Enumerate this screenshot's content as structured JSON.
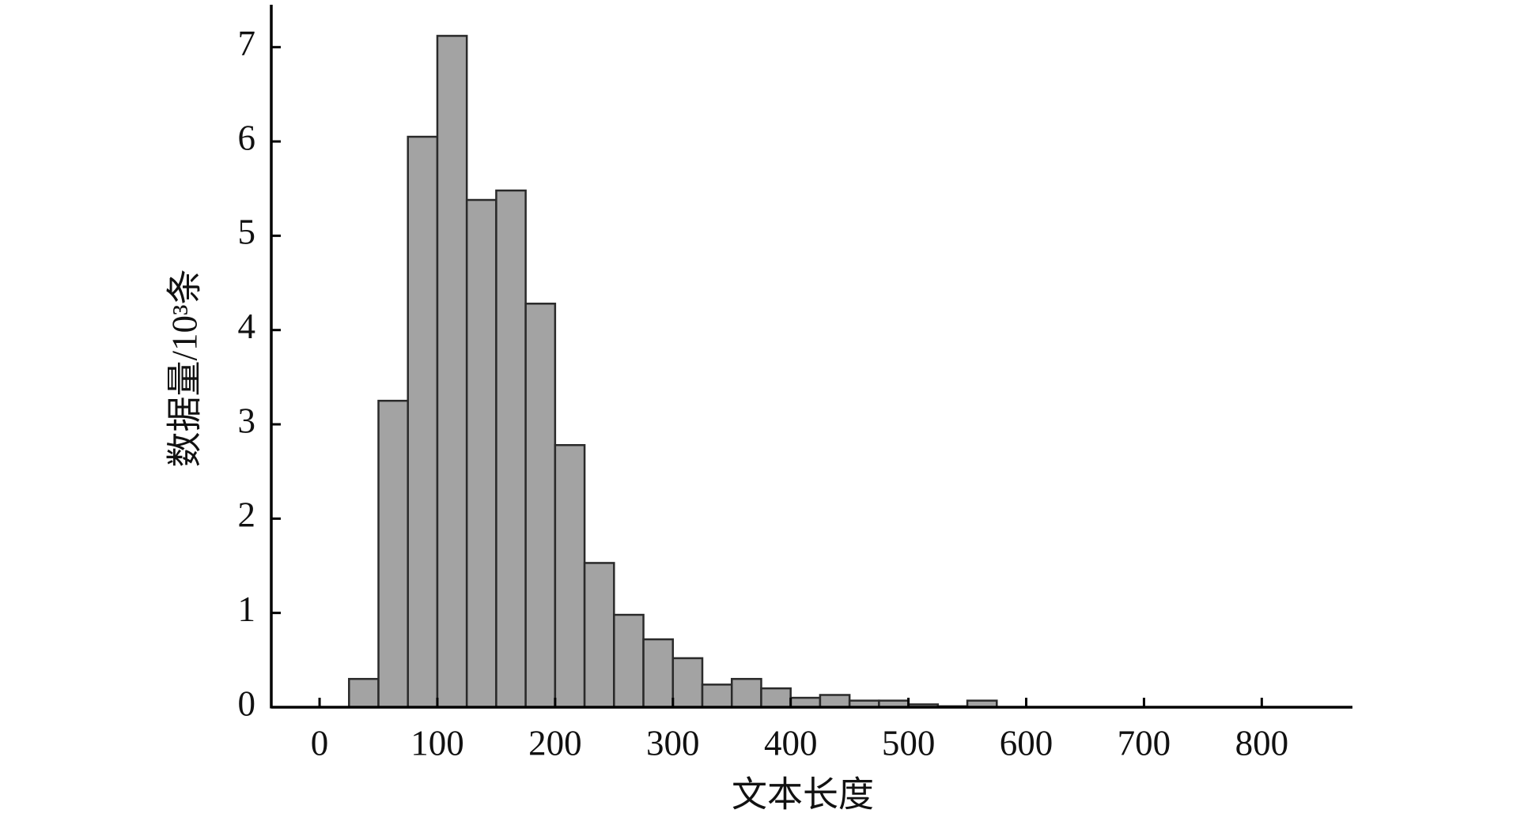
{
  "chart_data": {
    "type": "histogram",
    "x_label": "文本长度",
    "y_label": "数据量/10³条",
    "bins": [
      25,
      50,
      75,
      100,
      125,
      150,
      175,
      200,
      225,
      250,
      275,
      300,
      325,
      350,
      375,
      400,
      425,
      450,
      475,
      500,
      525,
      550,
      575
    ],
    "values": [
      0.3,
      3.25,
      6.05,
      7.12,
      5.38,
      5.48,
      4.28,
      2.78,
      1.53,
      0.98,
      0.72,
      0.52,
      0.24,
      0.3,
      0.2,
      0.1,
      0.13,
      0.07,
      0.07,
      0.03,
      0.01,
      0.07
    ],
    "color": "#a3a3a3",
    "xlim": [
      -41,
      877
    ],
    "ylim": [
      0,
      7.45
    ],
    "xticks": [
      0,
      100,
      200,
      300,
      400,
      500,
      600,
      700,
      800
    ],
    "yticks": [
      0,
      1,
      2,
      3,
      4,
      5,
      6,
      7
    ]
  }
}
